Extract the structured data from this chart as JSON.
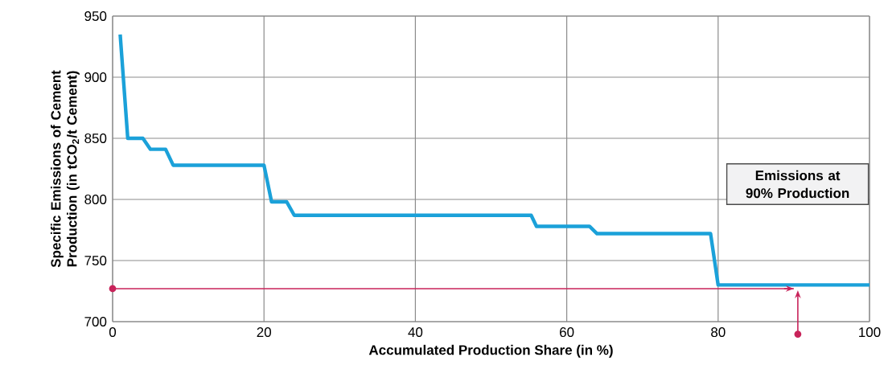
{
  "chart_data": {
    "type": "line",
    "xlabel": "Accumulated Production  Share (in %)",
    "ylabel": "Specific Emissions of Cement Production  (in tCO$_{2}$/t Cement)",
    "series": [
      {
        "color": "#1ba1d9",
        "x": [
          1,
          2,
          4,
          5,
          7,
          8,
          20,
          21,
          23,
          24,
          55.3,
          56,
          63,
          64,
          79,
          80,
          100
        ],
        "values": [
          935,
          850,
          850,
          841,
          841,
          828,
          828,
          798,
          798,
          787,
          787,
          778,
          778,
          772,
          772,
          730,
          730
        ]
      },
      {
        "type": "line",
        "color": "#c8235a",
        "x": [
          0,
          90
        ],
        "values": [
          727,
          727
        ]
      }
    ],
    "xlim": [
      0,
      100
    ],
    "xticks": [
      0,
      20,
      40,
      60,
      80,
      100
    ],
    "ylim": [
      700,
      950
    ],
    "yticks": [
      700,
      750,
      800,
      850,
      900,
      950
    ],
    "grid": true,
    "line_style": "solid",
    "annotations": [
      "Emissions at 90% Production"
    ]
  }
}
